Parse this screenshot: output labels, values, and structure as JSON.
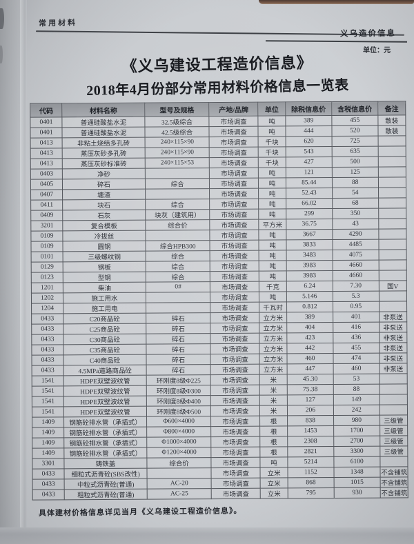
{
  "page": {
    "section_header": "常用材料",
    "publication": "义乌造价信息",
    "unit_note": "单位：元",
    "title_line1": "《义乌建设工程造价信息》",
    "title_line2": "2018年4月份部分常用材料价格信息一览表",
    "footer_note": "具体建材价格信息详见当月《义乌建设工程造价信息》。"
  },
  "colors": {
    "page_bg": "#cdd0d4",
    "table_border": "#53565c",
    "header_row_bg": "#9b9ea3",
    "text": "#2c2f36",
    "top_strip": "#5f4638"
  },
  "table": {
    "columns": [
      "代码",
      "材料名称",
      "型号及规格",
      "产地/品牌",
      "单位",
      "除税信息价",
      "含税信息价",
      "备注"
    ],
    "column_keys": [
      "code",
      "material-name",
      "spec",
      "origin-brand",
      "unit",
      "price-ex-tax",
      "price-inc-tax",
      "remark"
    ],
    "rows": [
      [
        "0401",
        "普通硅酸盐水泥",
        "32.5级综合",
        "市场调查",
        "吨",
        "389",
        "455",
        "散装"
      ],
      [
        "0401",
        "普通硅酸盐水泥",
        "42.5级综合",
        "市场调查",
        "吨",
        "444",
        "520",
        "散装"
      ],
      [
        "0413",
        "非粘土烧结多孔砖",
        "240×115×90",
        "市场调查",
        "千块",
        "620",
        "725",
        ""
      ],
      [
        "0413",
        "蒸压灰砂多孔砖",
        "240×115×90",
        "市场调查",
        "千块",
        "543",
        "635",
        ""
      ],
      [
        "0413",
        "蒸压灰砂标准砖",
        "240×115×53",
        "市场调查",
        "千块",
        "427",
        "500",
        ""
      ],
      [
        "0403",
        "净砂",
        "",
        "市场调查",
        "吨",
        "121",
        "125",
        ""
      ],
      [
        "0405",
        "碎石",
        "综合",
        "市场调查",
        "吨",
        "85.44",
        "88",
        ""
      ],
      [
        "0407",
        "塘渣",
        "",
        "市场调查",
        "吨",
        "52.43",
        "54",
        ""
      ],
      [
        "0411",
        "块石",
        "综合",
        "市场调查",
        "吨",
        "66.02",
        "68",
        ""
      ],
      [
        "0409",
        "石灰",
        "块灰（建筑用）",
        "市场调查",
        "吨",
        "299",
        "350",
        ""
      ],
      [
        "3201",
        "复合模板",
        "综合价",
        "市场调查",
        "平方米",
        "36.75",
        "43",
        ""
      ],
      [
        "0109",
        "冷拔丝",
        "",
        "市场调查",
        "吨",
        "3667",
        "4290",
        ""
      ],
      [
        "0109",
        "圆钢",
        "综合HPB300",
        "市场调查",
        "吨",
        "3833",
        "4485",
        ""
      ],
      [
        "0101",
        "三级螺纹钢",
        "综合",
        "市场调查",
        "吨",
        "3483",
        "4075",
        ""
      ],
      [
        "0129",
        "钢板",
        "综合",
        "市场调查",
        "吨",
        "3983",
        "4660",
        ""
      ],
      [
        "0123",
        "型钢",
        "综合",
        "市场调查",
        "吨",
        "3983",
        "4660",
        ""
      ],
      [
        "1201",
        "柴油",
        "0#",
        "市场调查",
        "千克",
        "6.24",
        "7.30",
        "国V"
      ],
      [
        "1202",
        "施工用水",
        "",
        "市场调查",
        "吨",
        "5.146",
        "5.3",
        ""
      ],
      [
        "1204",
        "施工用电",
        "",
        "市场调查",
        "千瓦时",
        "0.812",
        "0.95",
        ""
      ],
      [
        "0433",
        "C20商品砼",
        "碎石",
        "市场调查",
        "立方米",
        "389",
        "401",
        "非泵送"
      ],
      [
        "0433",
        "C25商品砼",
        "碎石",
        "市场调查",
        "立方米",
        "404",
        "416",
        "非泵送"
      ],
      [
        "0433",
        "C30商品砼",
        "碎石",
        "市场调查",
        "立方米",
        "423",
        "436",
        "非泵送"
      ],
      [
        "0433",
        "C35商品砼",
        "碎石",
        "市场调查",
        "立方米",
        "442",
        "455",
        "非泵送"
      ],
      [
        "0433",
        "C40商品砼",
        "碎石",
        "市场调查",
        "立方米",
        "460",
        "474",
        "非泵送"
      ],
      [
        "0433",
        "4.5MPa道路商品砼",
        "碎石",
        "市场调查",
        "立方米",
        "447",
        "460",
        "非泵送"
      ],
      [
        "1541",
        "HDPE双壁波纹管",
        "环刚度8级Φ225",
        "市场调查",
        "米",
        "45.30",
        "53",
        ""
      ],
      [
        "1541",
        "HDPE双壁波纹管",
        "环刚度8级Φ300",
        "市场调查",
        "米",
        "75.38",
        "88",
        ""
      ],
      [
        "1541",
        "HDPE双壁波纹管",
        "环刚度8级Φ400",
        "市场调查",
        "米",
        "127",
        "149",
        ""
      ],
      [
        "1541",
        "HDPE双壁波纹管",
        "环刚度8级Φ500",
        "市场调查",
        "米",
        "206",
        "242",
        ""
      ],
      [
        "1409",
        "钢筋砼排水管（承插式）",
        "Φ600×4000",
        "市场调查",
        "根",
        "838",
        "980",
        "三级管"
      ],
      [
        "1409",
        "钢筋砼排水管（承插式）",
        "Φ800×4000",
        "市场调查",
        "根",
        "1453",
        "1700",
        "三级管"
      ],
      [
        "1409",
        "钢筋砼排水管（承插式）",
        "Φ1000×4000",
        "市场调查",
        "根",
        "2308",
        "2700",
        "三级管"
      ],
      [
        "1409",
        "钢筋砼排水管（承插式）",
        "Φ1200×4000",
        "市场调查",
        "根",
        "2821",
        "3300",
        "三级管"
      ],
      [
        "3301",
        "铸铁盖",
        "综合价",
        "市场调查",
        "吨",
        "5214",
        "6100",
        ""
      ],
      [
        "0433",
        "细粒式沥青砼(SBS改性)",
        "",
        "市场调查",
        "立米",
        "1152",
        "1348",
        "不含铺筑"
      ],
      [
        "0433",
        "中粒式沥青砼(普通)",
        "AC-20",
        "市场调查",
        "立米",
        "868",
        "1015",
        "不含铺筑"
      ],
      [
        "0433",
        "粗粒式沥青砼(普通)",
        "AC-25",
        "市场调查",
        "立米",
        "795",
        "930",
        "不含铺筑"
      ]
    ]
  }
}
